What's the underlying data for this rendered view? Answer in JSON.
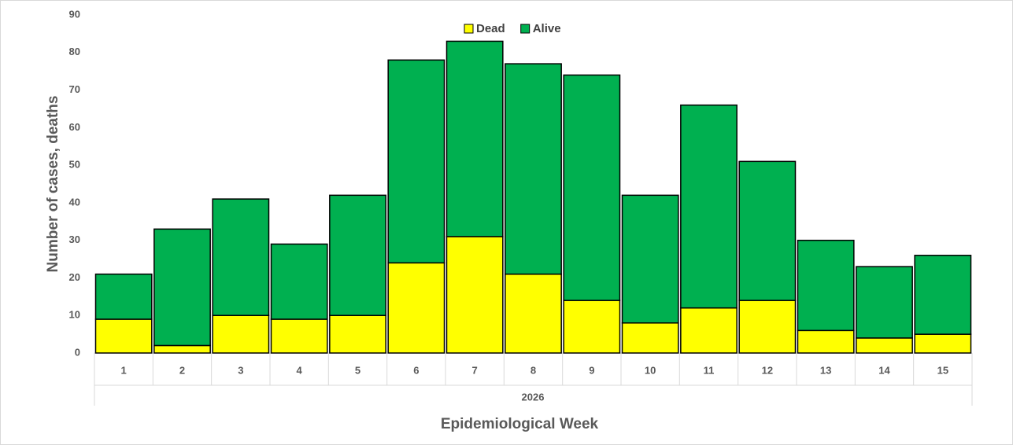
{
  "chart_data": {
    "type": "stacked_bar",
    "categories": [
      "1",
      "2",
      "3",
      "4",
      "5",
      "6",
      "7",
      "8",
      "9",
      "10",
      "11",
      "12",
      "13",
      "14",
      "15"
    ],
    "category_group": "2026",
    "series": [
      {
        "name": "Dead",
        "color": "#ffff00",
        "values": [
          9,
          2,
          10,
          9,
          10,
          24,
          31,
          21,
          14,
          8,
          12,
          14,
          6,
          4,
          5
        ]
      },
      {
        "name": "Alive",
        "color": "#00b050",
        "values": [
          12,
          31,
          31,
          20,
          32,
          54,
          52,
          56,
          60,
          34,
          54,
          37,
          24,
          19,
          21
        ]
      }
    ],
    "ylim": [
      0,
      90
    ],
    "yticks": [
      0,
      10,
      20,
      30,
      40,
      50,
      60,
      70,
      80,
      90
    ],
    "y_label": "Number of cases, deaths",
    "x_label": "Epidemiological Week",
    "legend": "top"
  }
}
